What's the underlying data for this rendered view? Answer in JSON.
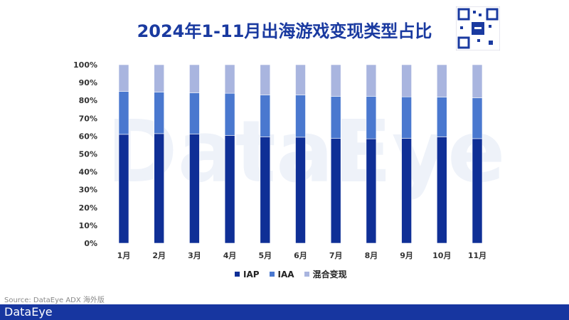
{
  "title": "2024年1-11月出海游戏变现类型占比",
  "watermark": "DataEye",
  "source": "Source: DataEye ADX 海外版",
  "footer_brand": "DataEye",
  "chart_data": {
    "type": "bar",
    "stacked": true,
    "title": "2024年1-11月出海游戏变现类型占比",
    "categories": [
      "1月",
      "2月",
      "3月",
      "4月",
      "5月",
      "6月",
      "7月",
      "8月",
      "9月",
      "10月",
      "11月"
    ],
    "yticks": [
      "0%",
      "10%",
      "20%",
      "30%",
      "40%",
      "50%",
      "60%",
      "70%",
      "80%",
      "90%",
      "100%"
    ],
    "ylim": [
      0,
      100
    ],
    "grid": false,
    "legend_position": "bottom-center",
    "series": [
      {
        "name": "IAP",
        "color": "#0f2f96",
        "values": [
          61.0,
          61.4,
          61.2,
          60.4,
          59.6,
          59.4,
          58.7,
          58.5,
          58.8,
          59.6,
          58.6
        ]
      },
      {
        "name": "IAA",
        "color": "#4a78cf",
        "values": [
          24.0,
          23.3,
          23.1,
          23.6,
          23.5,
          23.6,
          23.6,
          23.8,
          23.2,
          22.3,
          22.8
        ]
      },
      {
        "name": "混合变现",
        "color": "#a9b5df",
        "values": [
          15.0,
          15.3,
          15.7,
          16.0,
          16.9,
          17.0,
          17.7,
          17.7,
          18.0,
          18.1,
          18.6
        ]
      }
    ]
  }
}
